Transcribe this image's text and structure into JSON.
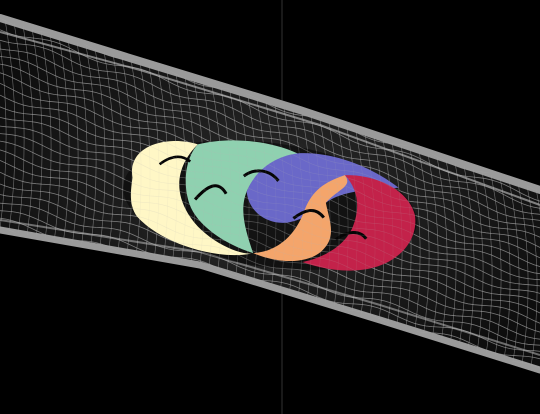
{
  "scene": {
    "subject": "mesh-tube-with-swirl-vortex",
    "colors": {
      "background": "#000000",
      "tube_outline": "#9a9a9a",
      "mesh_line": "#b8b8b8",
      "tube_fill": "#1a1a1a",
      "vertical_line": "#2a2a2a",
      "swirl_cream": "#fff7c6",
      "swirl_mint": "#8fd1b0",
      "swirl_blue": "#6a68c8",
      "swirl_orange": "#f4a56b",
      "swirl_red": "#c3224a",
      "swirl_shadow": "#050505"
    }
  }
}
